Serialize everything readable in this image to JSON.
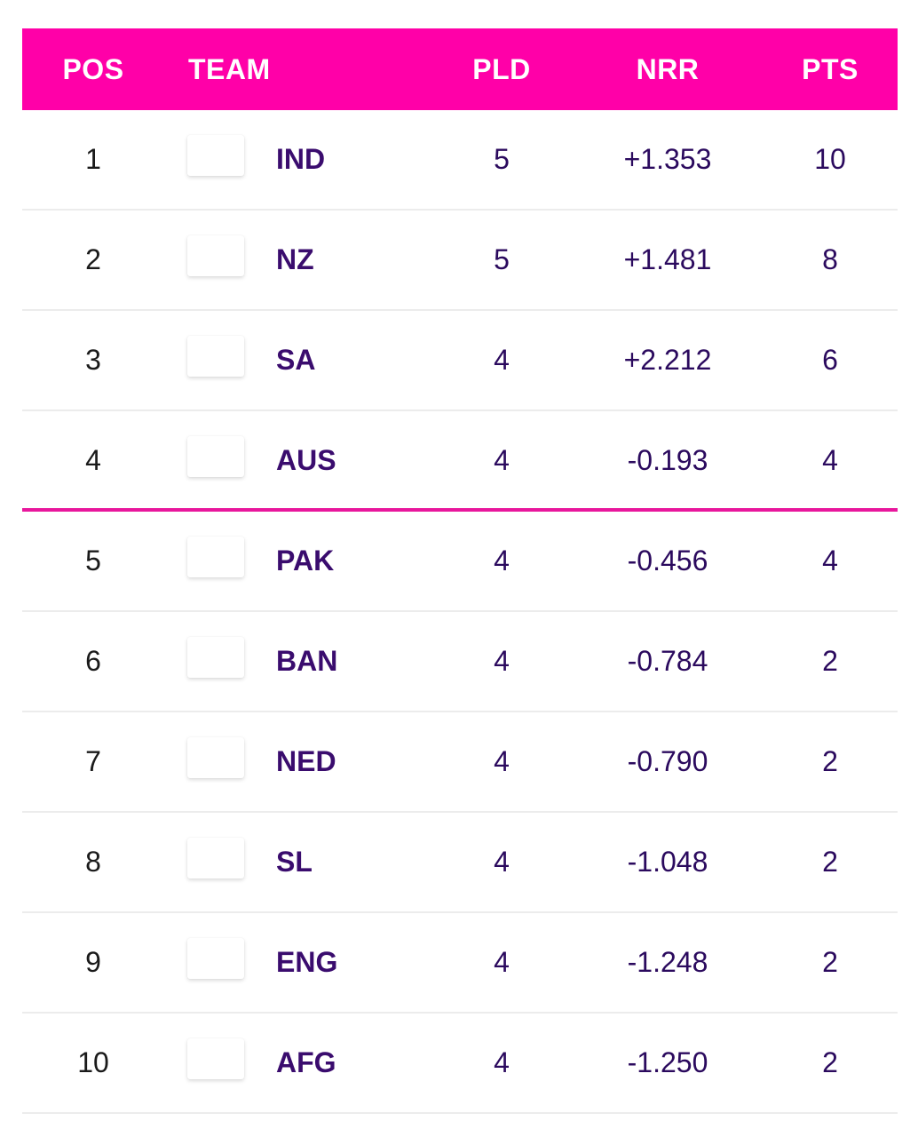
{
  "header": {
    "pos": "POS",
    "team": "TEAM",
    "pld": "PLD",
    "nrr": "NRR",
    "pts": "PTS"
  },
  "colors": {
    "header_bg": "#ff00a8",
    "cutoff_line": "#e8179c",
    "text": "#3a0c6e"
  },
  "rows": [
    {
      "pos": "1",
      "team": "IND",
      "pld": "5",
      "nrr": "+1.353",
      "pts": "10"
    },
    {
      "pos": "2",
      "team": "NZ",
      "pld": "5",
      "nrr": "+1.481",
      "pts": "8"
    },
    {
      "pos": "3",
      "team": "SA",
      "pld": "4",
      "nrr": "+2.212",
      "pts": "6"
    },
    {
      "pos": "4",
      "team": "AUS",
      "pld": "4",
      "nrr": "-0.193",
      "pts": "4"
    },
    {
      "pos": "5",
      "team": "PAK",
      "pld": "4",
      "nrr": "-0.456",
      "pts": "4"
    },
    {
      "pos": "6",
      "team": "BAN",
      "pld": "4",
      "nrr": "-0.784",
      "pts": "2"
    },
    {
      "pos": "7",
      "team": "NED",
      "pld": "4",
      "nrr": "-0.790",
      "pts": "2"
    },
    {
      "pos": "8",
      "team": "SL",
      "pld": "4",
      "nrr": "-1.048",
      "pts": "2"
    },
    {
      "pos": "9",
      "team": "ENG",
      "pld": "4",
      "nrr": "-1.248",
      "pts": "2"
    },
    {
      "pos": "10",
      "team": "AFG",
      "pld": "4",
      "nrr": "-1.250",
      "pts": "2"
    }
  ]
}
